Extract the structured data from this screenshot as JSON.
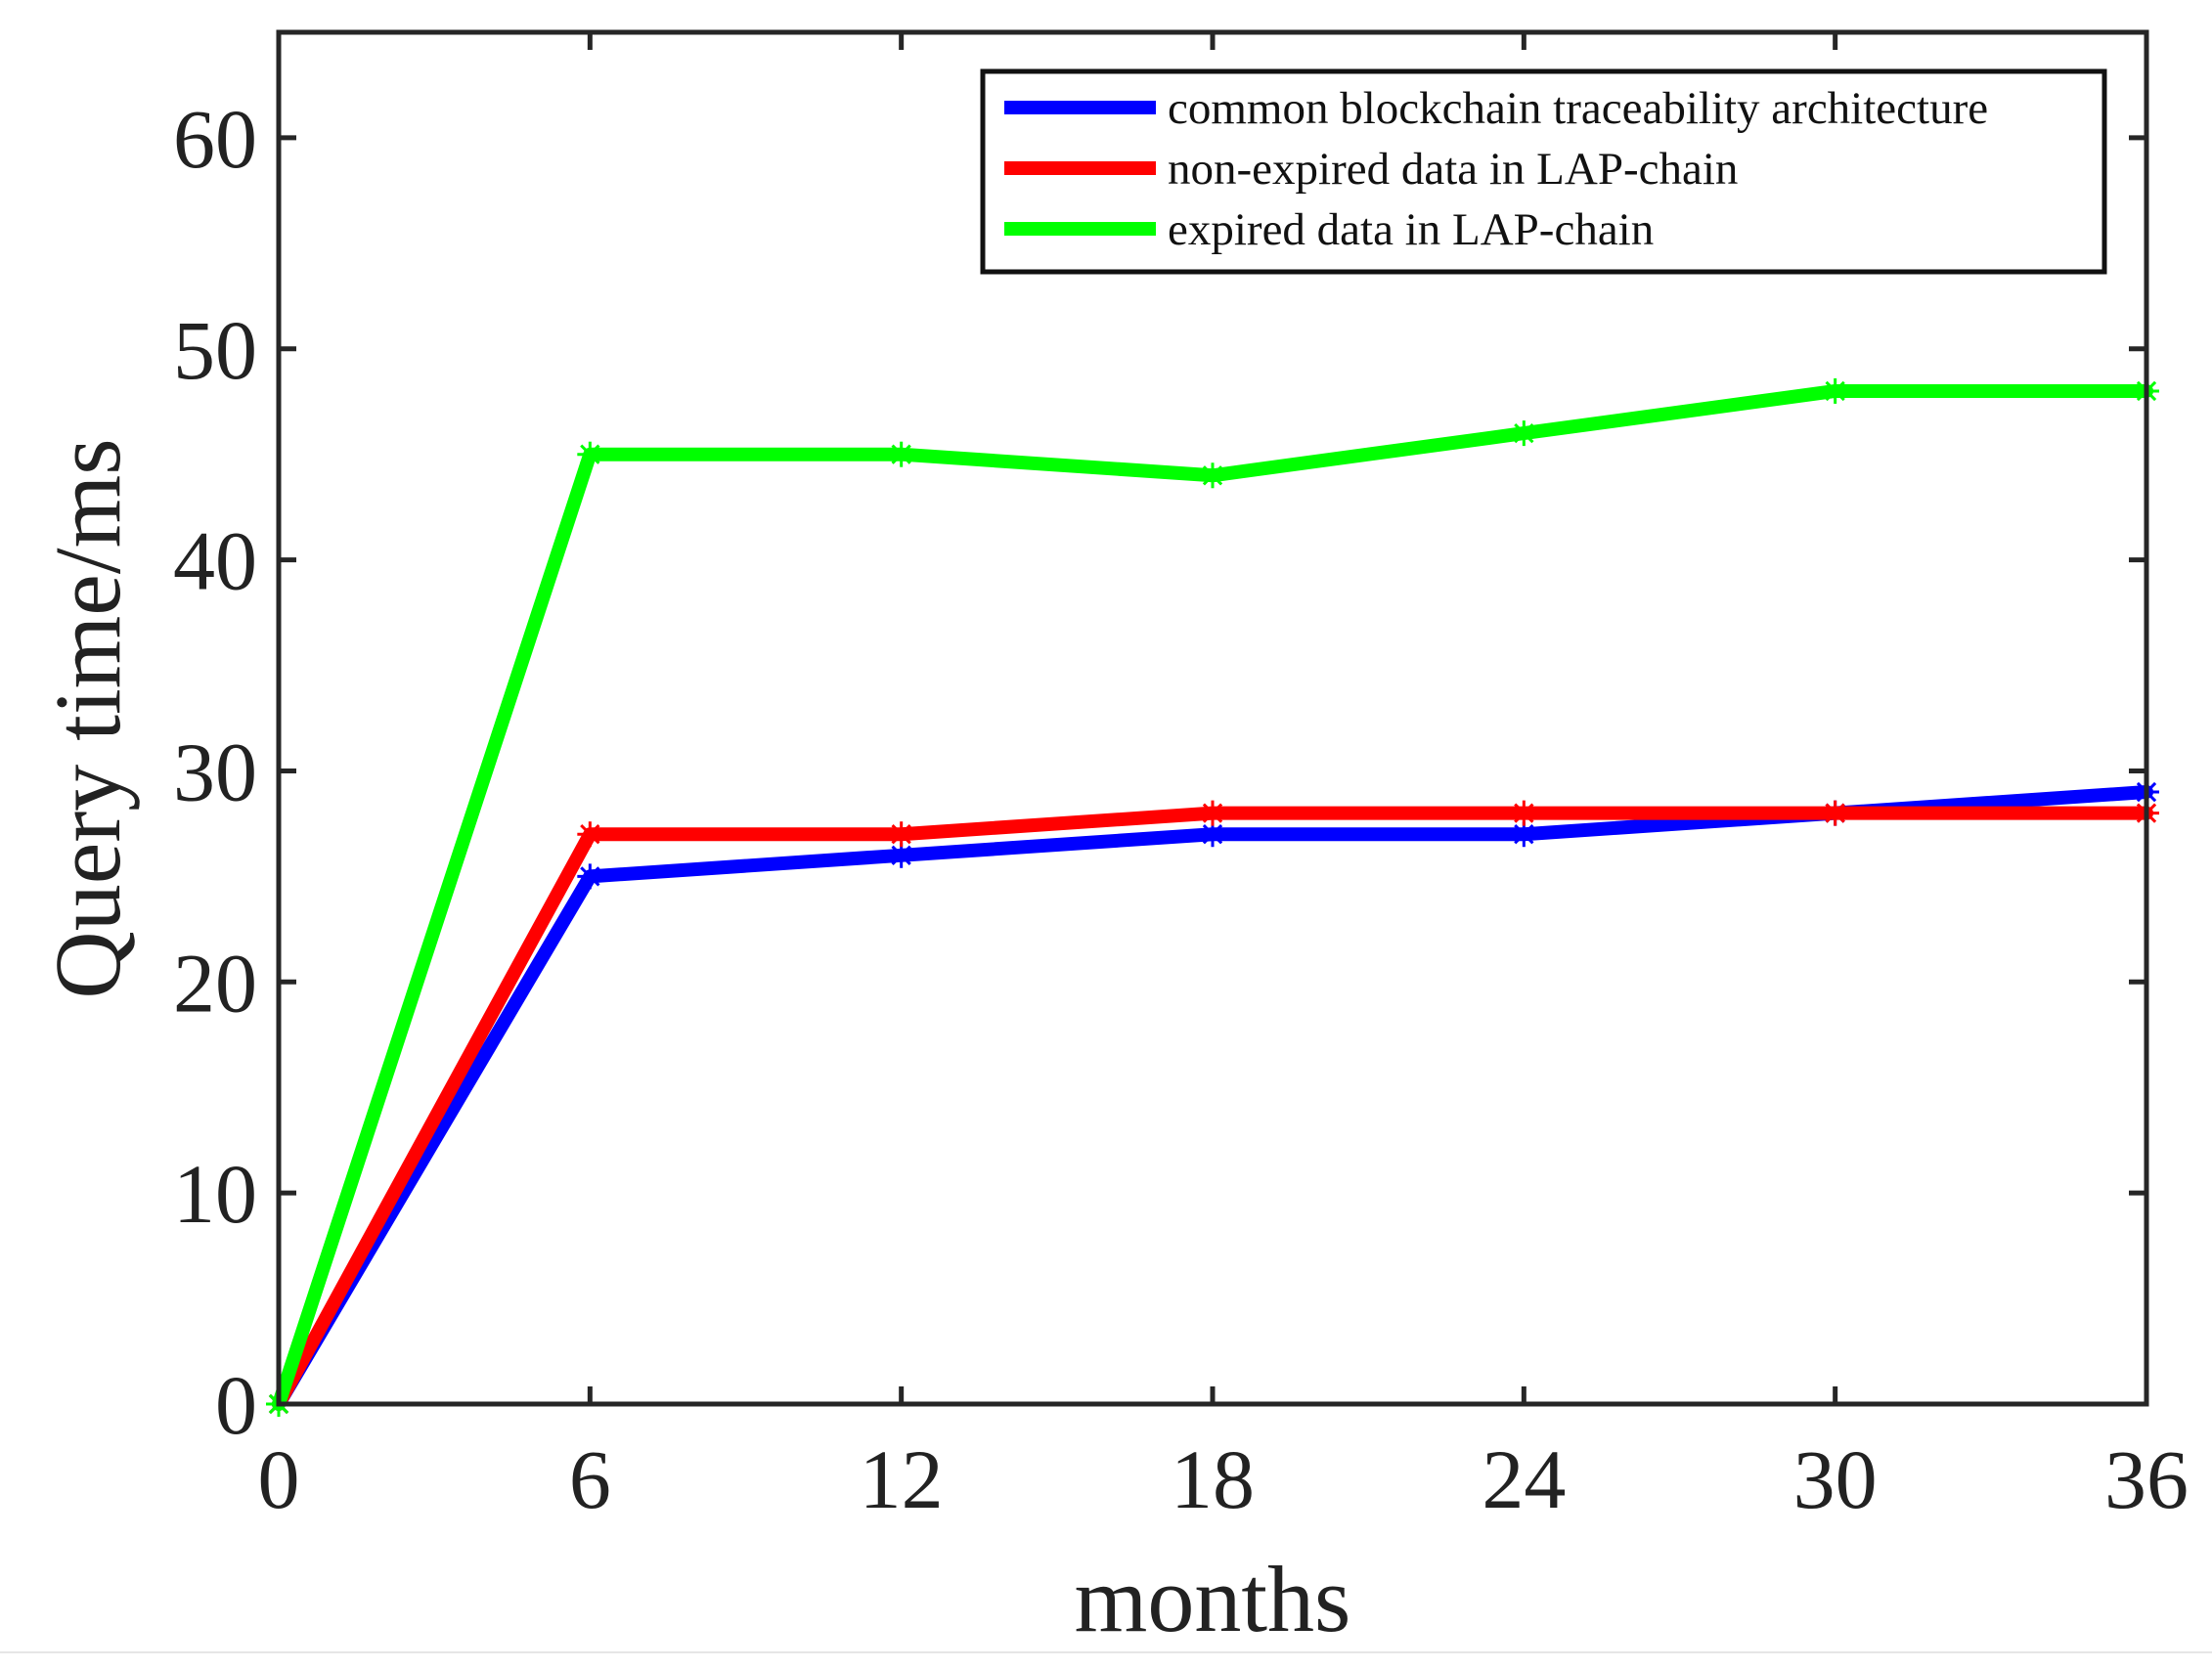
{
  "chart_data": {
    "type": "line",
    "title": "",
    "xlabel": "months",
    "ylabel": "Query time/ms",
    "x": [
      0,
      6,
      12,
      18,
      24,
      30,
      36
    ],
    "xlim": [
      0,
      36
    ],
    "ylim": [
      0,
      65
    ],
    "xticks": [
      "0",
      "6",
      "12",
      "18",
      "24",
      "30",
      "36"
    ],
    "yticks": [
      "0",
      "10",
      "20",
      "30",
      "40",
      "50",
      "60"
    ],
    "legend_position": "top-right",
    "grid": false,
    "marker": "asterisk",
    "series": [
      {
        "name": "common blockchain traceability architecture",
        "color": "#0000ff",
        "values": [
          0,
          25,
          26,
          27,
          27,
          28,
          29
        ]
      },
      {
        "name": "non-expired data in LAP-chain",
        "color": "#ff0000",
        "values": [
          0,
          27,
          27,
          28,
          28,
          28,
          28
        ]
      },
      {
        "name": "expired data in LAP-chain",
        "color": "#00ff00",
        "values": [
          0,
          45,
          45,
          44,
          46,
          48,
          48
        ]
      }
    ]
  }
}
